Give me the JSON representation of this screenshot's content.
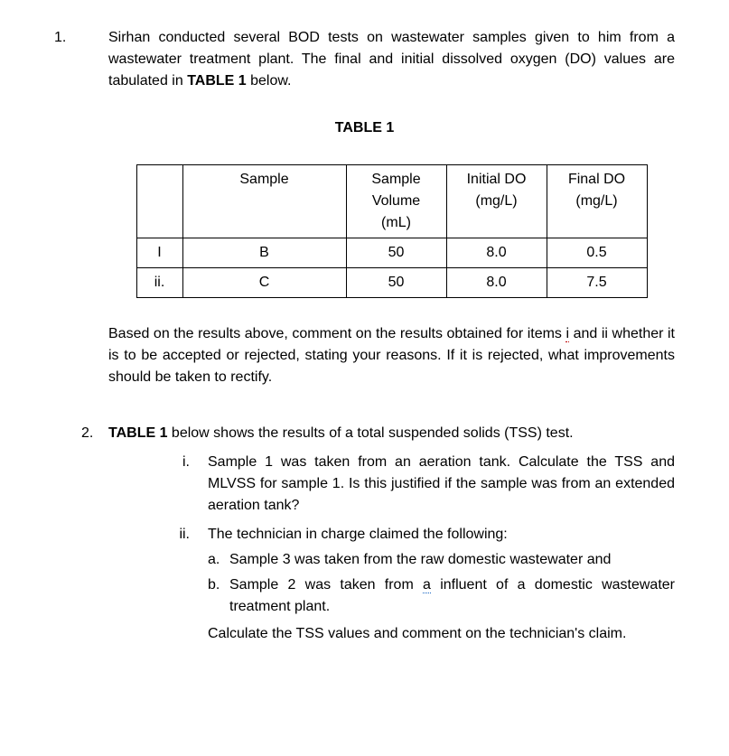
{
  "q1": {
    "number": "1.",
    "para": {
      "part1": "Sirhan conducted several BOD tests on wastewater samples given to him from a wastewater treatment plant.  The final and initial dissolved oxygen (DO) values are tabulated in ",
      "bold": "TABLE 1",
      "part2": " below."
    },
    "table_title": "TABLE 1",
    "table": {
      "headers": {
        "idx": "",
        "sample": "Sample",
        "volume": "Sample Volume (mL)",
        "initial_do": "Initial DO (mg/L)",
        "final_do": "Final DO (mg/L)"
      },
      "rows": [
        {
          "idx": "I",
          "sample": "B",
          "volume": "50",
          "initial_do": "8.0",
          "final_do": "0.5"
        },
        {
          "idx": "ii.",
          "sample": "C",
          "volume": "50",
          "initial_do": "8.0",
          "final_do": "7.5"
        }
      ]
    },
    "tail": {
      "part1": "Based on the results above, comment on the results obtained for items ",
      "underlined_i": "i",
      "part2": " and ii whether it is to be accepted or rejected, stating your reasons. If it is rejected, what improvements should be taken to rectify."
    }
  },
  "q2": {
    "number": "2.",
    "intro": {
      "pre": "",
      "bold": "TABLE 1",
      "post": " below shows the results of a total suspended solids (TSS) test."
    },
    "items": {
      "i": {
        "label": "i.",
        "text": "Sample 1 was taken from an aeration tank.  Calculate the TSS and MLVSS for sample 1.  Is this justified if the sample was from an extended aeration tank?"
      },
      "ii": {
        "label": "ii.",
        "lead": "The technician in charge claimed the following:",
        "a": {
          "label": "a.",
          "text": "Sample 3 was taken from the raw domestic wastewater and"
        },
        "b": {
          "label": "b.",
          "pre": "Sample 2 was taken from ",
          "underlined_a": "a",
          "post": " influent of a domestic wastewater treatment plant."
        },
        "calc": "Calculate the TSS values and comment on the technician's claim."
      }
    }
  }
}
